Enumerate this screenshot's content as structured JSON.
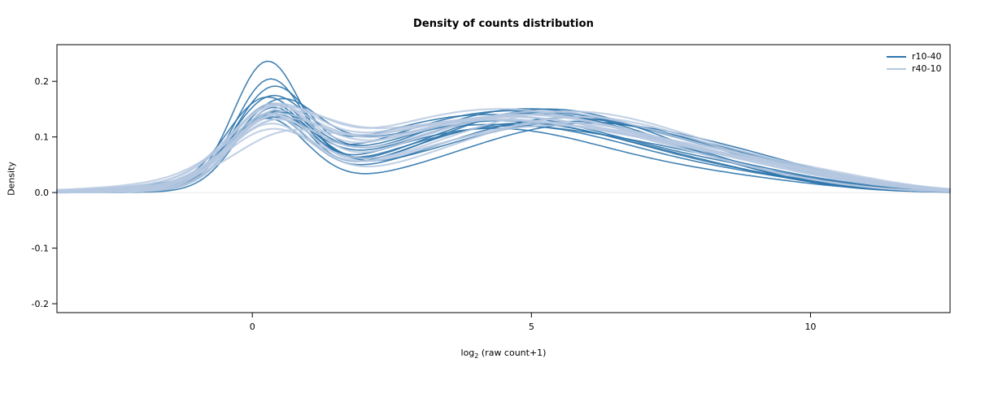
{
  "chart_data": {
    "type": "line",
    "title": "Density of counts distribution",
    "xlabel": "log2 (raw count+1)",
    "xlabel_parts": {
      "prefix": "log",
      "sub": "2",
      "suffix": " (raw count+1)"
    },
    "ylabel": "Density",
    "xlim": [
      -3.5,
      12.5
    ],
    "ylim": [
      -0.216,
      0.266
    ],
    "xticks": [
      "0",
      "5",
      "10"
    ],
    "yticks": [
      "-0.2",
      "-0.1",
      "0.0",
      "0.1",
      "0.2"
    ],
    "grid": false,
    "zero_line": true,
    "zero_line_color": "#e8e8e8",
    "legend_position": "top-right",
    "curve_model": "each density curve is y(x) = sum of gaussian components given as [amplitude, mean, sd] triples; first bump ~x=0.3, broad bump ~x=4-6, small shoulder ~x=8-10",
    "series": [
      {
        "name": "r10-40",
        "color": "#2d74ab",
        "line_width": 1.6,
        "opacity": 0.9,
        "curves": [
          [
            0.215,
            0.25,
            0.6,
            0.115,
            4.3,
            2.2,
            0.018,
            8.6,
            1.6
          ],
          [
            0.185,
            0.3,
            0.62,
            0.12,
            4.7,
            2.3,
            0.015,
            9.0,
            1.5
          ],
          [
            0.16,
            0.35,
            0.66,
            0.128,
            4.4,
            2.4,
            0.02,
            8.2,
            1.6
          ],
          [
            0.145,
            0.3,
            0.7,
            0.14,
            5.0,
            2.2,
            0.018,
            8.6,
            1.8
          ],
          [
            0.14,
            0.2,
            0.68,
            0.146,
            4.6,
            2.5,
            0.014,
            8.0,
            1.5
          ],
          [
            0.132,
            0.4,
            0.74,
            0.15,
            5.3,
            2.2,
            0.01,
            9.2,
            1.3
          ],
          [
            0.128,
            0.3,
            0.66,
            0.14,
            4.2,
            2.6,
            0.02,
            8.8,
            1.6
          ],
          [
            0.13,
            0.25,
            0.72,
            0.134,
            5.6,
            2.4,
            0.018,
            9.6,
            1.4
          ],
          [
            0.125,
            0.35,
            0.78,
            0.15,
            4.9,
            2.3,
            0.014,
            8.3,
            1.4
          ],
          [
            0.122,
            0.3,
            0.82,
            0.128,
            5.8,
            2.6,
            0.01,
            9.9,
            1.3
          ],
          [
            0.115,
            0.45,
            0.7,
            0.118,
            4.0,
            2.8,
            0.028,
            8.0,
            2.0
          ],
          [
            0.118,
            0.3,
            0.76,
            0.144,
            5.1,
            2.5,
            0.018,
            9.0,
            1.5
          ],
          [
            0.14,
            0.35,
            0.64,
            0.11,
            4.5,
            2.0,
            0.036,
            7.6,
            2.2
          ],
          [
            0.128,
            0.25,
            0.72,
            0.124,
            6.0,
            2.3,
            0.02,
            9.3,
            1.4
          ]
        ]
      },
      {
        "name": "r40-10",
        "color": "#b6c8e0",
        "line_width": 2.2,
        "opacity": 0.82,
        "curves": [
          [
            0.06,
            0.5,
            0.85,
            0.136,
            4.5,
            2.8,
            0.02,
            9.0,
            1.6
          ],
          [
            0.095,
            0.4,
            0.88,
            0.14,
            4.8,
            2.7,
            0.018,
            9.4,
            1.5
          ],
          [
            0.105,
            0.35,
            0.8,
            0.146,
            5.2,
            2.6,
            0.014,
            9.7,
            1.4
          ],
          [
            0.105,
            0.3,
            0.76,
            0.13,
            4.3,
            2.9,
            0.024,
            8.8,
            1.7
          ],
          [
            0.125,
            0.35,
            0.72,
            0.126,
            5.5,
            2.5,
            0.018,
            10.0,
            1.3
          ],
          [
            0.125,
            0.3,
            0.72,
            0.136,
            4.6,
            2.6,
            0.014,
            8.5,
            1.5
          ],
          [
            0.135,
            0.4,
            0.68,
            0.14,
            5.0,
            2.4,
            0.01,
            9.2,
            1.4
          ],
          [
            0.1,
            0.45,
            0.8,
            0.15,
            4.4,
            2.7,
            0.02,
            9.0,
            1.6
          ],
          [
            0.1,
            0.3,
            0.84,
            0.146,
            5.7,
            2.5,
            0.014,
            10.3,
            1.2
          ],
          [
            0.105,
            0.35,
            0.76,
            0.13,
            4.1,
            2.8,
            0.028,
            8.3,
            1.9
          ],
          [
            0.125,
            0.25,
            0.7,
            0.12,
            5.4,
            2.6,
            0.02,
            9.5,
            1.5
          ],
          [
            0.105,
            0.4,
            0.82,
            0.14,
            4.9,
            2.7,
            0.018,
            9.8,
            1.4
          ],
          [
            0.115,
            0.3,
            0.78,
            0.136,
            5.9,
            2.4,
            0.01,
            10.6,
            1.2
          ],
          [
            0.085,
            0.45,
            0.88,
            0.13,
            4.2,
            3.0,
            0.024,
            8.7,
            1.8
          ]
        ]
      }
    ]
  }
}
